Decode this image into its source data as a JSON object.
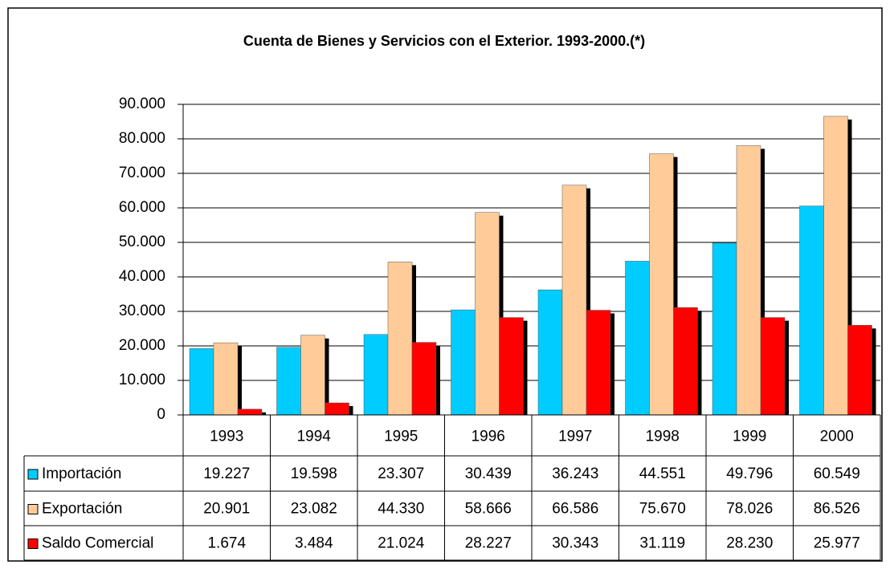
{
  "chart_data": {
    "type": "bar",
    "title": "Cuenta de Bienes y Servicios con el Exterior. 1993-2000.(*)",
    "categories": [
      "1993",
      "1994",
      "1995",
      "1996",
      "1997",
      "1998",
      "1999",
      "2000"
    ],
    "series": [
      {
        "name": "Importación",
        "color": "#00ccff",
        "values": [
          19227,
          19598,
          23307,
          30439,
          36243,
          44551,
          49796,
          60549
        ],
        "value_labels": [
          "19.227",
          "19.598",
          "23.307",
          "30.439",
          "36.243",
          "44.551",
          "49.796",
          "60.549"
        ]
      },
      {
        "name": "Exportación",
        "color": "#ffcc99",
        "values": [
          20901,
          23082,
          44330,
          58666,
          66586,
          75670,
          78026,
          86526
        ],
        "value_labels": [
          "20.901",
          "23.082",
          "44.330",
          "58.666",
          "66.586",
          "75.670",
          "78.026",
          "86.526"
        ]
      },
      {
        "name": "Saldo Comercial",
        "color": "#ff0000",
        "values": [
          1674,
          3484,
          21024,
          28227,
          30343,
          31119,
          28230,
          25977
        ],
        "value_labels": [
          "1.674",
          "3.484",
          "21.024",
          "28.227",
          "30.343",
          "31.119",
          "28.230",
          "25.977"
        ]
      }
    ],
    "ylim": [
      0,
      90000
    ],
    "yticks": [
      0,
      {
        "value": 10000,
        "label": "10.000"
      },
      {
        "value": 20000,
        "label": "20.000"
      },
      {
        "value": 30000,
        "label": "30.000"
      },
      {
        "value": 40000,
        "label": "40.000"
      },
      {
        "value": 50000,
        "label": "50.000"
      },
      {
        "value": 60000,
        "label": "60.000"
      },
      {
        "value": 70000,
        "label": "70.000"
      },
      {
        "value": 80000,
        "label": "80.000"
      },
      {
        "value": 90000,
        "label": "90.000"
      }
    ],
    "grid": true
  }
}
